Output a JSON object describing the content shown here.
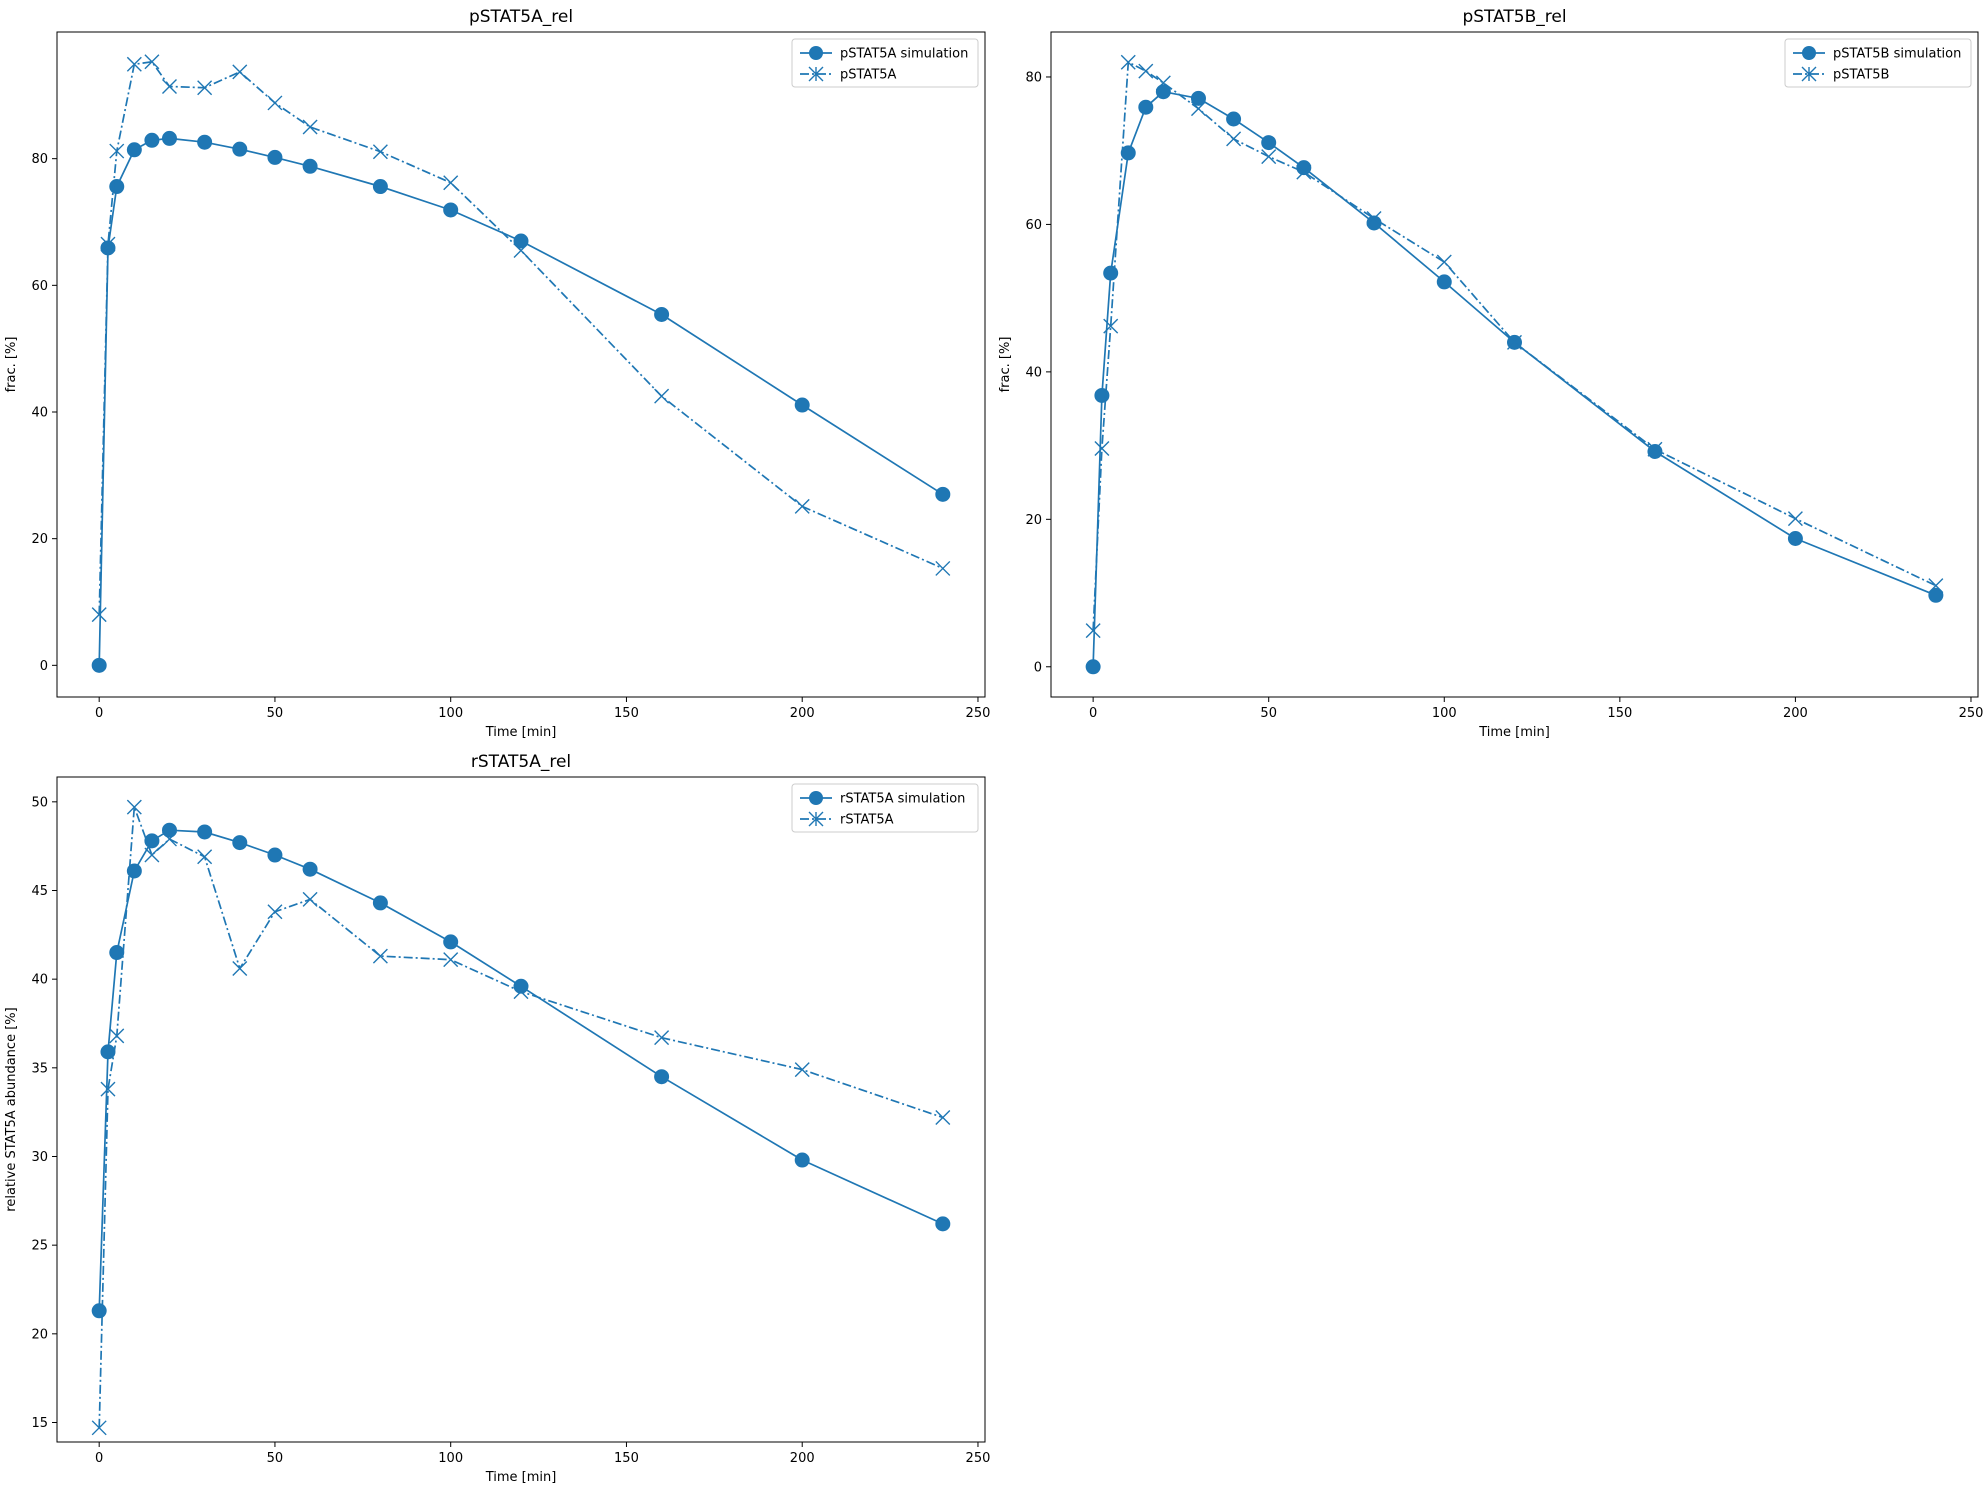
{
  "chart_data": [
    {
      "type": "line",
      "title": "pSTAT5A_rel",
      "xlabel": "Time [min]",
      "ylabel": "frac. [%]",
      "xlim": [
        -12,
        252
      ],
      "ylim": [
        -5,
        100
      ],
      "xticks": [
        0,
        50,
        100,
        150,
        200,
        250
      ],
      "yticks": [
        0,
        20,
        40,
        60,
        80
      ],
      "legend": "top-right",
      "color": "#1f77b4",
      "series": [
        {
          "name": "pSTAT5A simulation",
          "style": "solid-circle",
          "x": [
            0,
            2.5,
            5,
            10,
            15,
            20,
            30,
            40,
            50,
            60,
            80,
            100,
            120,
            160,
            200,
            240
          ],
          "y": [
            0,
            65.9,
            75.6,
            81.4,
            82.9,
            83.2,
            82.6,
            81.5,
            80.2,
            78.8,
            75.6,
            71.9,
            67.0,
            55.4,
            41.1,
            27.0
          ]
        },
        {
          "name": "pSTAT5A",
          "style": "dashdot-x",
          "x": [
            0,
            2.5,
            5,
            10,
            15,
            20,
            30,
            40,
            50,
            60,
            80,
            100,
            120,
            160,
            200,
            240
          ],
          "y": [
            8.0,
            66.5,
            81.2,
            94.9,
            95.3,
            91.4,
            91.2,
            93.7,
            88.8,
            85.0,
            81.1,
            76.2,
            65.5,
            42.5,
            25.1,
            15.3
          ]
        }
      ]
    },
    {
      "type": "line",
      "title": "pSTAT5B_rel",
      "xlabel": "Time [min]",
      "ylabel": "frac. [%]",
      "xlim": [
        -12,
        252
      ],
      "ylim": [
        -4.1,
        86.1
      ],
      "xticks": [
        0,
        50,
        100,
        150,
        200,
        250
      ],
      "yticks": [
        0,
        20,
        40,
        60,
        80
      ],
      "legend": "top-right",
      "color": "#1f77b4",
      "series": [
        {
          "name": "pSTAT5B simulation",
          "style": "solid-circle",
          "x": [
            0,
            2.5,
            5,
            10,
            15,
            20,
            30,
            40,
            50,
            60,
            80,
            100,
            120,
            160,
            200,
            240
          ],
          "y": [
            0,
            36.8,
            53.4,
            69.7,
            75.9,
            78.0,
            77.1,
            74.3,
            71.1,
            67.7,
            60.2,
            52.2,
            44.0,
            29.2,
            17.4,
            9.7
          ]
        },
        {
          "name": "pSTAT5B",
          "style": "dashdot-x",
          "x": [
            0,
            2.5,
            5,
            10,
            15,
            20,
            30,
            40,
            50,
            60,
            80,
            100,
            120,
            160,
            200,
            240
          ],
          "y": [
            4.9,
            29.6,
            46.2,
            82.0,
            80.8,
            79.2,
            75.7,
            71.6,
            69.2,
            67.1,
            60.8,
            54.9,
            44.0,
            29.5,
            20.1,
            11.0
          ]
        }
      ]
    },
    {
      "type": "line",
      "title": "rSTAT5A_rel",
      "xlabel": "Time [min]",
      "ylabel": "relative STAT5A abundance [%]",
      "xlim": [
        -12,
        252
      ],
      "ylim": [
        13.9,
        51.4
      ],
      "xticks": [
        0,
        50,
        100,
        150,
        200,
        250
      ],
      "yticks": [
        15,
        20,
        25,
        30,
        35,
        40,
        45,
        50
      ],
      "legend": "top-right",
      "color": "#1f77b4",
      "series": [
        {
          "name": "rSTAT5A simulation",
          "style": "solid-circle",
          "x": [
            0,
            2.5,
            5,
            10,
            15,
            20,
            30,
            40,
            50,
            60,
            80,
            100,
            120,
            160,
            200,
            240
          ],
          "y": [
            21.3,
            35.9,
            41.5,
            46.1,
            47.8,
            48.4,
            48.3,
            47.7,
            47.0,
            46.2,
            44.3,
            42.1,
            39.6,
            34.5,
            29.8,
            26.2
          ]
        },
        {
          "name": "rSTAT5A",
          "style": "dashdot-x",
          "x": [
            0,
            2.5,
            5,
            10,
            15,
            20,
            30,
            40,
            50,
            60,
            80,
            100,
            120,
            160,
            200,
            240
          ],
          "y": [
            14.7,
            33.8,
            36.8,
            49.7,
            47.0,
            47.9,
            46.9,
            40.6,
            43.8,
            44.5,
            41.3,
            41.1,
            39.3,
            36.7,
            34.9,
            32.2
          ]
        }
      ]
    }
  ]
}
